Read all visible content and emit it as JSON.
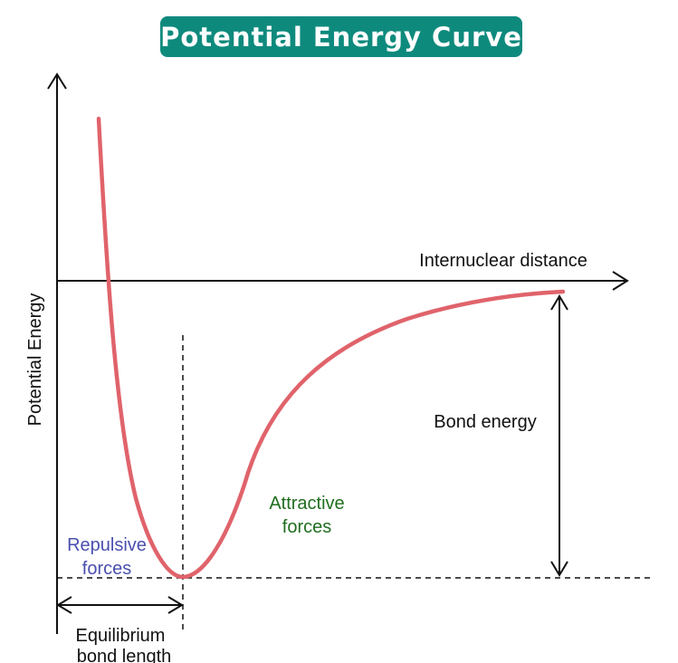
{
  "title": "Potential Energy Curve",
  "axes": {
    "x_label": "Internuclear distance",
    "y_label": "Potential Energy"
  },
  "annotations": {
    "repulsive": [
      "Repulsive",
      "forces"
    ],
    "attractive": [
      "Attractive",
      "forces"
    ],
    "bond_energy": "Bond energy",
    "equilibrium": [
      "Equilibrium",
      "bond length"
    ]
  },
  "colors": {
    "title_bg": "#0e8a7d",
    "curve": "#e0636b",
    "repulsive_text": "#4a4fae",
    "attractive_text": "#1f6e1f",
    "axis": "#111111"
  },
  "icons": [
    "x-axis-arrow-icon",
    "y-axis-arrow-icon",
    "bond-energy-double-arrow-icon",
    "bond-length-double-arrow-icon"
  ]
}
